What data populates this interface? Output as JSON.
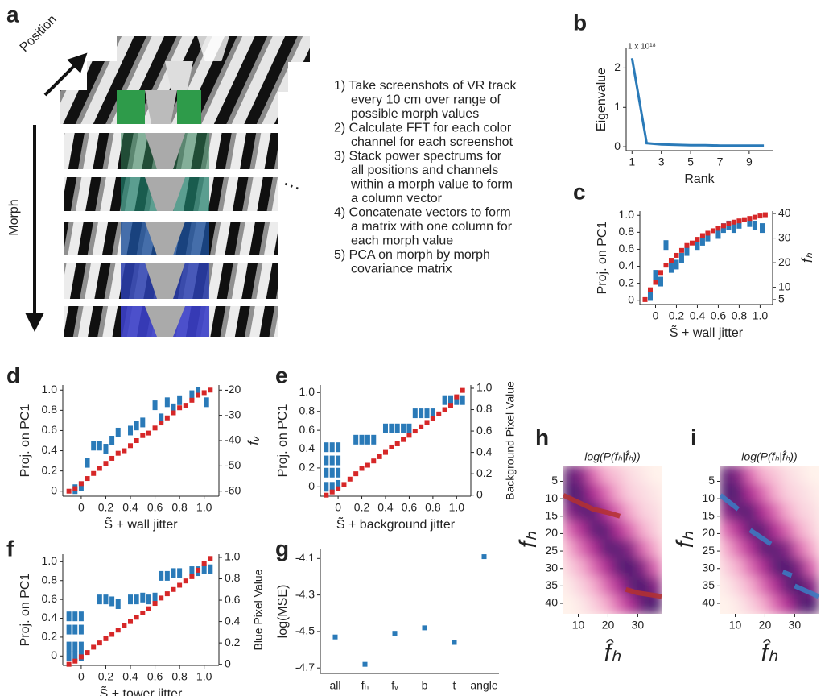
{
  "figure_a": {
    "label": "a",
    "position_label": "Position",
    "morph_label": "Morph",
    "ellipsis": "⋯",
    "steps": [
      [
        "1) Take screenshots of VR track",
        "every 10 cm over range of",
        "possible morph values"
      ],
      [
        "2) Calculate FFT for each color",
        "channel for each screenshot"
      ],
      [
        "3) Stack power spectrums for",
        "all positions and channels",
        "within a morph value to form",
        "a column vector"
      ],
      [
        "4) Concatenate vectors to form",
        "a matrix with one column for",
        "each morph value"
      ],
      [
        "5) PCA on morph by morph",
        "covariance matrix"
      ]
    ]
  },
  "chart_data": [
    {
      "type": "line",
      "label": "b",
      "scale_note": "1 x 10¹⁸",
      "xlabel": "Rank",
      "ylabel": "Eigenvalue",
      "x": [
        1,
        2,
        3,
        4,
        5,
        6,
        7,
        8,
        9,
        10
      ],
      "series": [
        {
          "color": "#2a7ab8",
          "values": [
            2.25,
            0.09,
            0.06,
            0.05,
            0.04,
            0.04,
            0.03,
            0.03,
            0.03,
            0.03
          ]
        }
      ],
      "xlim": [
        0.6,
        10.6
      ],
      "xticks": [
        1,
        3,
        5,
        7,
        9
      ],
      "ylim": [
        -0.1,
        2.5
      ],
      "yticks": [
        0,
        1,
        2
      ]
    },
    {
      "type": "scatter",
      "label": "c",
      "xlabel": "S̃ + wall jitter",
      "ylabel": "Proj. on PC1",
      "y2label": "fₕ",
      "xlim": [
        -0.15,
        1.12
      ],
      "xticks": [
        0,
        0.2,
        0.4,
        0.6,
        0.8,
        {
          "value": 1,
          "label": "1.0"
        }
      ],
      "ylim": [
        -0.05,
        1.05
      ],
      "yticks": [
        0,
        0.2,
        0.4,
        0.6,
        0.8,
        {
          "value": 1,
          "label": "1.0"
        }
      ],
      "y2lim": [
        3,
        41
      ],
      "y2ticks": [
        5,
        10,
        20,
        30,
        40
      ],
      "series": [
        {
          "color": "#2a7ab8",
          "x": [
            -0.05,
            0,
            0.05,
            0.1,
            0.15,
            0.2,
            0.25,
            0.3,
            0.4,
            0.45,
            0.5,
            0.6,
            0.65,
            0.7,
            0.75,
            0.8,
            0.9,
            0.95,
            1.02
          ],
          "values": [
            0.05,
            0.3,
            0.22,
            0.65,
            0.38,
            0.42,
            0.5,
            0.58,
            0.65,
            0.7,
            0.75,
            0.78,
            0.85,
            0.88,
            0.85,
            0.9,
            0.92,
            0.88,
            0.85
          ]
        },
        {
          "color": "#d62728",
          "axis": "y2",
          "x": [
            -0.1,
            -0.05,
            0,
            0.05,
            0.1,
            0.15,
            0.2,
            0.25,
            0.3,
            0.35,
            0.4,
            0.45,
            0.5,
            0.55,
            0.6,
            0.65,
            0.7,
            0.75,
            0.8,
            0.85,
            0.9,
            0.95,
            1.0,
            1.05
          ],
          "values": [
            5,
            9,
            12,
            16,
            19,
            21,
            23,
            25,
            27,
            28,
            29.5,
            31,
            32,
            33,
            34,
            35,
            36,
            36.5,
            37,
            37.5,
            38,
            38.5,
            39,
            39.5
          ]
        }
      ]
    },
    {
      "type": "scatter",
      "label": "d",
      "xlabel": "S̃ + wall jitter",
      "ylabel": "Proj. on PC1",
      "y2label": "fᵥ",
      "xlim": [
        -0.15,
        1.12
      ],
      "xticks": [
        0,
        0.2,
        0.4,
        0.6,
        0.8,
        {
          "value": 1,
          "label": "1.0"
        }
      ],
      "ylim": [
        -0.05,
        1.05
      ],
      "yticks": [
        0,
        0.2,
        0.4,
        0.6,
        0.8,
        {
          "value": 1,
          "label": "1.0"
        }
      ],
      "y2lim": [
        -62,
        -18
      ],
      "y2ticks": [
        -60,
        -50,
        -40,
        -30,
        -20
      ],
      "series": [
        {
          "color": "#2a7ab8",
          "x": [
            -0.05,
            0,
            0.05,
            0.1,
            0.15,
            0.2,
            0.25,
            0.3,
            0.4,
            0.45,
            0.5,
            0.6,
            0.65,
            0.7,
            0.75,
            0.8,
            0.9,
            0.95,
            1.02
          ],
          "values": [
            0.02,
            0.05,
            0.28,
            0.45,
            0.45,
            0.42,
            0.5,
            0.58,
            0.6,
            0.65,
            0.68,
            0.85,
            0.72,
            0.88,
            0.82,
            0.9,
            0.95,
            0.98,
            0.88
          ]
        },
        {
          "color": "#d62728",
          "axis": "y2",
          "x": [
            -0.1,
            -0.05,
            0,
            0.05,
            0.1,
            0.15,
            0.2,
            0.25,
            0.3,
            0.35,
            0.4,
            0.45,
            0.5,
            0.55,
            0.6,
            0.65,
            0.7,
            0.75,
            0.8,
            0.85,
            0.9,
            0.95,
            1.0,
            1.05
          ],
          "values": [
            -60,
            -59,
            -57,
            -55,
            -53,
            -51,
            -49,
            -47,
            -45,
            -44,
            -42,
            -40,
            -38,
            -37,
            -35,
            -33,
            -31,
            -29,
            -27,
            -26,
            -24,
            -22,
            -21,
            -20
          ]
        }
      ]
    },
    {
      "type": "scatter",
      "label": "e",
      "xlabel": "S̃ + background jitter",
      "ylabel": "Proj. on PC1",
      "y2label": "Background Pixel Value",
      "xlim": [
        -0.15,
        1.12
      ],
      "xticks": [
        0,
        0.2,
        0.4,
        0.6,
        0.8,
        {
          "value": 1,
          "label": "1.0"
        }
      ],
      "ylim": [
        -0.1,
        1.08
      ],
      "yticks": [
        0,
        0.2,
        0.4,
        0.6,
        0.8,
        {
          "value": 1,
          "label": "1.0"
        }
      ],
      "y2lim": [
        -0.01,
        1.03
      ],
      "y2ticks": [
        0,
        0.2,
        0.4,
        0.6,
        0.8,
        {
          "value": 1,
          "label": "1.0"
        }
      ],
      "series": [
        {
          "color": "#2a7ab8",
          "x": [
            -0.1,
            -0.1,
            -0.1,
            -0.1,
            -0.05,
            -0.05,
            -0.05,
            -0.05,
            0,
            0,
            0,
            0,
            0.15,
            0.2,
            0.25,
            0.3,
            0.4,
            0.45,
            0.5,
            0.55,
            0.6,
            0.65,
            0.7,
            0.75,
            0.8,
            0.9,
            0.95,
            1.0,
            1.05
          ],
          "values": [
            0.42,
            0.28,
            0.15,
            0.0,
            0.42,
            0.28,
            0.15,
            0.0,
            0.42,
            0.28,
            0.15,
            0.02,
            0.5,
            0.5,
            0.5,
            0.5,
            0.62,
            0.62,
            0.62,
            0.62,
            0.62,
            0.78,
            0.78,
            0.78,
            0.78,
            0.92,
            0.92,
            0.92,
            0.92
          ]
        },
        {
          "color": "#d62728",
          "axis": "y2",
          "x": [
            -0.1,
            -0.05,
            0,
            0.05,
            0.1,
            0.15,
            0.2,
            0.25,
            0.3,
            0.35,
            0.4,
            0.45,
            0.5,
            0.55,
            0.6,
            0.65,
            0.7,
            0.75,
            0.8,
            0.85,
            0.9,
            0.95,
            1.0,
            1.05
          ],
          "values": [
            0,
            0.03,
            0.06,
            0.1,
            0.15,
            0.2,
            0.25,
            0.28,
            0.32,
            0.36,
            0.4,
            0.45,
            0.48,
            0.52,
            0.56,
            0.6,
            0.64,
            0.68,
            0.72,
            0.76,
            0.8,
            0.84,
            0.92,
            0.98
          ]
        }
      ]
    },
    {
      "type": "scatter",
      "label": "f",
      "xlabel": "S̃ + tower jitter",
      "ylabel": "Proj. on PC1",
      "y2label": "Blue Pixel Value",
      "xlim": [
        -0.15,
        1.12
      ],
      "xticks": [
        0,
        0.2,
        0.4,
        0.6,
        0.8,
        {
          "value": 1,
          "label": "1.0"
        }
      ],
      "ylim": [
        -0.1,
        1.08
      ],
      "yticks": [
        0,
        0.2,
        0.4,
        0.6,
        0.8,
        {
          "value": 1,
          "label": "1.0"
        }
      ],
      "y2lim": [
        -0.01,
        1.03
      ],
      "y2ticks": [
        0,
        0.2,
        0.4,
        0.6,
        0.8,
        {
          "value": 1,
          "label": "1.0"
        }
      ],
      "series": [
        {
          "color": "#2a7ab8",
          "x": [
            -0.1,
            -0.1,
            -0.1,
            -0.1,
            -0.05,
            -0.05,
            -0.05,
            -0.05,
            0,
            0,
            0,
            0,
            0.15,
            0.2,
            0.25,
            0.3,
            0.4,
            0.45,
            0.5,
            0.55,
            0.6,
            0.65,
            0.7,
            0.75,
            0.8,
            0.9,
            0.95,
            1.0,
            1.05
          ],
          "values": [
            0.42,
            0.28,
            0.1,
            0.0,
            0.42,
            0.28,
            0.1,
            0.0,
            0.42,
            0.28,
            0.1,
            0.0,
            0.6,
            0.6,
            0.58,
            0.55,
            0.6,
            0.6,
            0.62,
            0.6,
            0.62,
            0.85,
            0.85,
            0.88,
            0.88,
            0.9,
            0.9,
            0.92,
            0.92
          ]
        },
        {
          "color": "#d62728",
          "axis": "y2",
          "x": [
            -0.1,
            -0.05,
            0,
            0.05,
            0.1,
            0.15,
            0.2,
            0.25,
            0.3,
            0.35,
            0.4,
            0.45,
            0.5,
            0.55,
            0.6,
            0.65,
            0.7,
            0.75,
            0.8,
            0.85,
            0.9,
            0.95,
            1.0,
            1.05
          ],
          "values": [
            0,
            0.03,
            0.07,
            0.11,
            0.16,
            0.2,
            0.24,
            0.28,
            0.32,
            0.36,
            0.4,
            0.44,
            0.48,
            0.52,
            0.57,
            0.62,
            0.66,
            0.7,
            0.74,
            0.78,
            0.82,
            0.88,
            0.94,
            0.99
          ]
        }
      ]
    },
    {
      "type": "scatter",
      "label": "g",
      "ylabel": "log(MSE)",
      "categories": [
        "all",
        "fₕ",
        "fᵥ",
        "b",
        "t",
        "angle"
      ],
      "values": [
        -4.53,
        -4.68,
        -4.51,
        -4.48,
        -4.56,
        -4.09
      ],
      "color": "#2a7ab8",
      "ylim": [
        -4.73,
        -4.05
      ],
      "yticks": [
        -4.1,
        -4.3,
        -4.5,
        -4.7
      ]
    },
    {
      "type": "heatmap",
      "label": "h",
      "title": "log(P(fₕ|f̂ₕ))",
      "xlabel": "f̂ₕ",
      "ylabel": "fₕ",
      "xlim": [
        5,
        38
      ],
      "ylim": [
        0.5,
        43
      ],
      "invert_y": true,
      "xticks": [
        10,
        20,
        30
      ],
      "yticks": [
        5,
        10,
        15,
        20,
        25,
        30,
        35,
        40
      ],
      "z": [
        [
          0.9,
          0.8,
          0.5,
          0.3,
          0.2,
          0.1,
          0.05,
          0.0
        ],
        [
          0.95,
          0.9,
          0.7,
          0.5,
          0.3,
          0.15,
          0.1,
          0.05
        ],
        [
          0.8,
          0.9,
          0.9,
          0.7,
          0.5,
          0.3,
          0.15,
          0.1
        ],
        [
          0.5,
          0.7,
          0.9,
          0.9,
          0.7,
          0.5,
          0.3,
          0.15
        ],
        [
          0.3,
          0.5,
          0.7,
          0.9,
          0.9,
          0.8,
          0.5,
          0.3
        ],
        [
          0.15,
          0.3,
          0.5,
          0.7,
          0.9,
          0.95,
          0.8,
          0.5
        ],
        [
          0.05,
          0.15,
          0.3,
          0.5,
          0.7,
          0.9,
          0.95,
          0.8
        ],
        [
          0.0,
          0.05,
          0.15,
          0.3,
          0.5,
          0.7,
          0.9,
          0.95
        ]
      ],
      "series": [
        {
          "color": "#b5302f",
          "x": [
            5,
            10,
            15,
            20,
            24,
            25,
            26,
            30,
            38
          ],
          "values": [
            9,
            11,
            13,
            14,
            15,
            null,
            36,
            37,
            38
          ]
        }
      ]
    },
    {
      "type": "heatmap",
      "label": "i",
      "title": "log(P(fₕ|f̂ₕ))",
      "xlabel": "f̂ₕ",
      "ylabel": "fₕ",
      "xlim": [
        5,
        38
      ],
      "ylim": [
        0.5,
        43
      ],
      "invert_y": true,
      "xticks": [
        10,
        20,
        30
      ],
      "yticks": [
        5,
        10,
        15,
        20,
        25,
        30,
        35,
        40
      ],
      "z": [
        [
          0.9,
          0.8,
          0.5,
          0.3,
          0.2,
          0.1,
          0.05,
          0.0
        ],
        [
          0.95,
          0.9,
          0.7,
          0.5,
          0.3,
          0.15,
          0.1,
          0.05
        ],
        [
          0.8,
          0.9,
          0.9,
          0.7,
          0.5,
          0.3,
          0.15,
          0.1
        ],
        [
          0.5,
          0.7,
          0.9,
          0.9,
          0.7,
          0.5,
          0.3,
          0.15
        ],
        [
          0.3,
          0.5,
          0.7,
          0.9,
          0.9,
          0.8,
          0.5,
          0.3
        ],
        [
          0.15,
          0.3,
          0.5,
          0.7,
          0.9,
          0.95,
          0.8,
          0.5
        ],
        [
          0.05,
          0.15,
          0.3,
          0.5,
          0.7,
          0.9,
          0.95,
          0.8
        ],
        [
          0.0,
          0.05,
          0.15,
          0.3,
          0.5,
          0.7,
          0.9,
          0.95
        ]
      ],
      "series": [
        {
          "color": "#3a7cc4",
          "x": [
            5,
            11,
            13,
            15,
            22,
            24,
            26,
            29,
            29.5,
            30,
            38
          ],
          "values": [
            9,
            13,
            null,
            19,
            23,
            null,
            31,
            32,
            null,
            35,
            38
          ]
        }
      ]
    }
  ]
}
